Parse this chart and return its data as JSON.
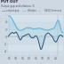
{
  "title": "PUT OUT",
  "subtitle": "Output gap and inflation, %",
  "bg_color": "#cdd8e3",
  "plot_bg": "#d6e2eb",
  "line1_color": "#2c4a6e",
  "line2_color": "#5ab4d6",
  "fill_color": "#a0cfe0",
  "grid_color": "#b8ccd8",
  "font_color": "#555566",
  "forecast_x": 2022,
  "xlim": [
    1984,
    2026
  ],
  "ylim": [
    -5,
    6
  ],
  "yticks": [
    -4,
    -2,
    0,
    2,
    4
  ],
  "xtick_years": [
    1985,
    1990,
    1995,
    2000,
    2005,
    2010,
    2015,
    2020
  ],
  "xtick_labels": [
    "85",
    "90",
    "95",
    "00",
    "05",
    "10",
    "15",
    "20"
  ]
}
